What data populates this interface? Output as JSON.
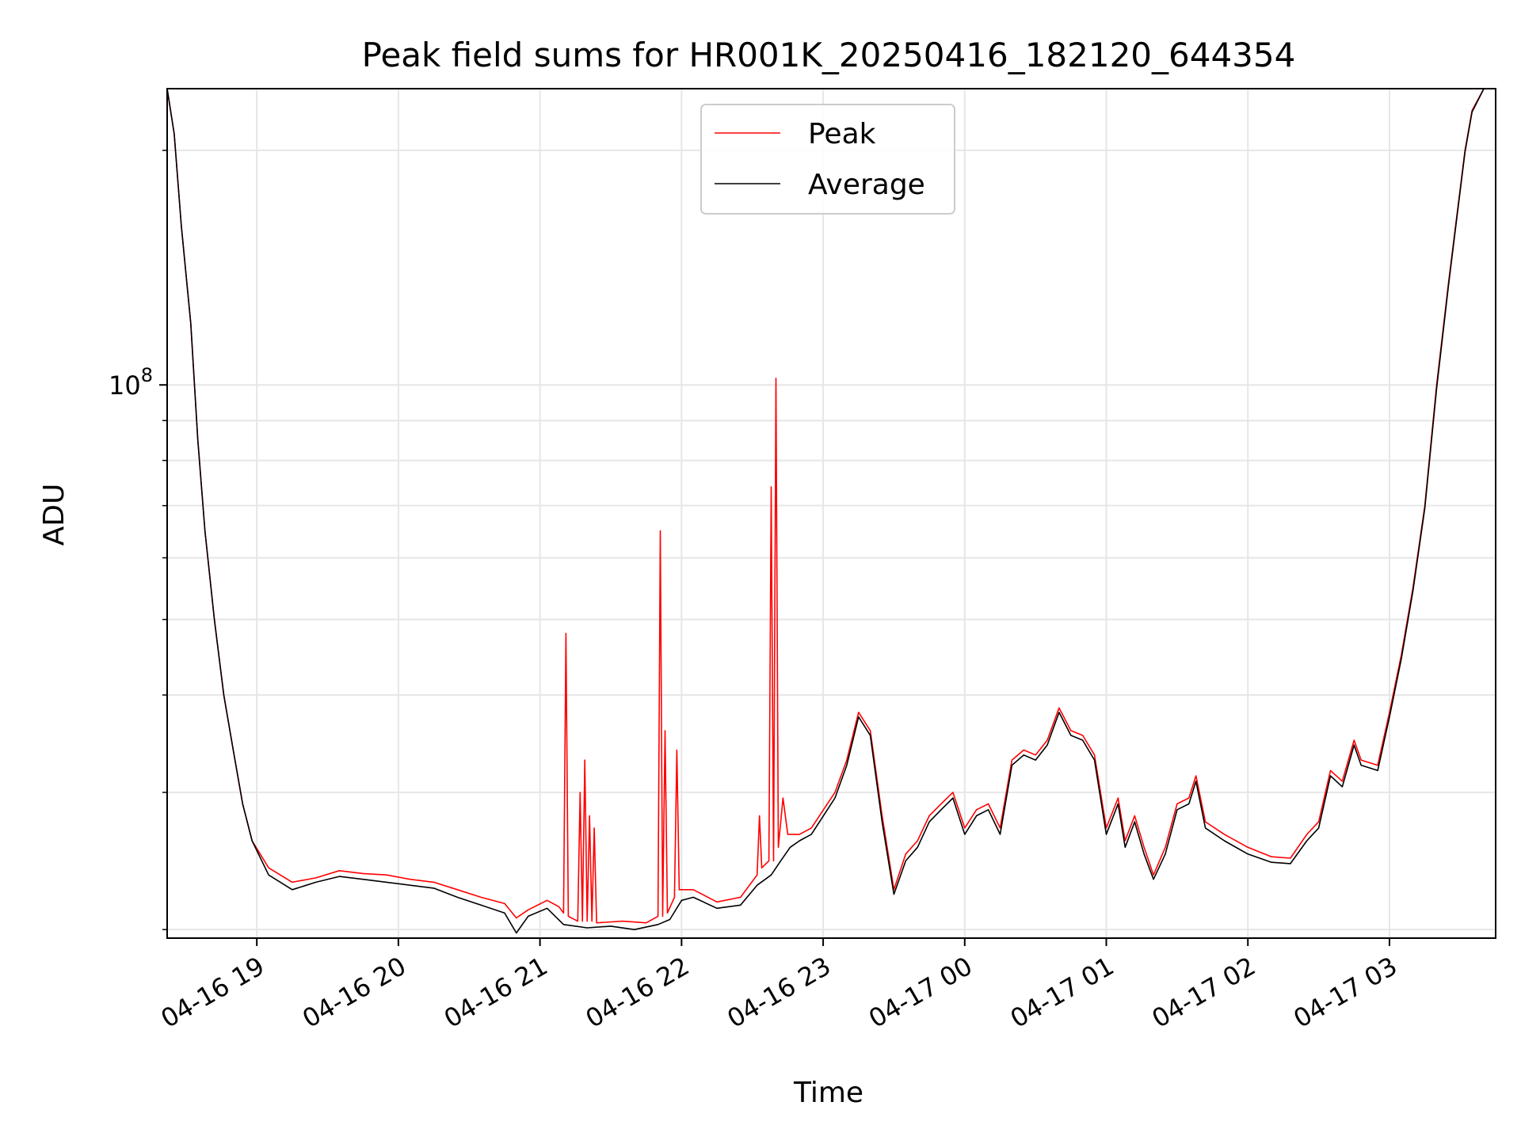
{
  "chart_data": {
    "type": "line",
    "title": "Peak field sums for HR001K_20250416_182120_644354",
    "xlabel": "Time",
    "ylabel": "ADU",
    "y_scale": "log",
    "ylim": [
      19500000,
      240000000
    ],
    "xlim": [
      "04-16 18:22",
      "04-17 03:45"
    ],
    "grid": true,
    "legend_position": "top-center",
    "x_ticks": [
      "04-16 19",
      "04-16 20",
      "04-16 21",
      "04-16 22",
      "04-16 23",
      "04-17 00",
      "04-17 01",
      "04-17 02",
      "04-17 03"
    ],
    "y_tick_label": {
      "base": "10",
      "exponent": "8",
      "value": 100000000
    },
    "series": [
      {
        "name": "Peak",
        "color": "#ff0000",
        "points": [
          [
            "04-16 18:22",
            240000000
          ],
          [
            "04-16 18:25",
            210000000
          ],
          [
            "04-16 18:28",
            160000000
          ],
          [
            "04-16 18:32",
            120000000
          ],
          [
            "04-16 18:35",
            85000000
          ],
          [
            "04-16 18:38",
            65000000
          ],
          [
            "04-16 18:42",
            50000000
          ],
          [
            "04-16 18:46",
            40000000
          ],
          [
            "04-16 18:50",
            34000000
          ],
          [
            "04-16 18:54",
            29000000
          ],
          [
            "04-16 18:58",
            26000000
          ],
          [
            "04-16 19:05",
            24000000
          ],
          [
            "04-16 19:15",
            23000000
          ],
          [
            "04-16 19:25",
            23300000
          ],
          [
            "04-16 19:35",
            23800000
          ],
          [
            "04-16 19:45",
            23600000
          ],
          [
            "04-16 19:55",
            23500000
          ],
          [
            "04-16 20:05",
            23200000
          ],
          [
            "04-16 20:15",
            23000000
          ],
          [
            "04-16 20:25",
            22500000
          ],
          [
            "04-16 20:35",
            22000000
          ],
          [
            "04-16 20:45",
            21600000
          ],
          [
            "04-16 20:50",
            20700000
          ],
          [
            "04-16 20:55",
            21200000
          ],
          [
            "04-16 21:03",
            21800000
          ],
          [
            "04-16 21:08",
            21400000
          ],
          [
            "04-16 21:10",
            21000000
          ],
          [
            "04-16 21:11",
            48000000
          ],
          [
            "04-16 21:12",
            20800000
          ],
          [
            "04-16 21:16",
            20500000
          ],
          [
            "04-16 21:17",
            30000000
          ],
          [
            "04-16 21:18",
            20500000
          ],
          [
            "04-16 21:19",
            33000000
          ],
          [
            "04-16 21:20",
            20500000
          ],
          [
            "04-16 21:21",
            28000000
          ],
          [
            "04-16 21:22",
            20500000
          ],
          [
            "04-16 21:23",
            27000000
          ],
          [
            "04-16 21:24",
            20400000
          ],
          [
            "04-16 21:35",
            20500000
          ],
          [
            "04-16 21:45",
            20400000
          ],
          [
            "04-16 21:50",
            20800000
          ],
          [
            "04-16 21:51",
            65000000
          ],
          [
            "04-16 21:52",
            20800000
          ],
          [
            "04-16 21:53",
            36000000
          ],
          [
            "04-16 21:54",
            21000000
          ],
          [
            "04-16 21:57",
            22000000
          ],
          [
            "04-16 21:58",
            34000000
          ],
          [
            "04-16 21:59",
            22500000
          ],
          [
            "04-16 22:05",
            22500000
          ],
          [
            "04-16 22:15",
            21700000
          ],
          [
            "04-16 22:25",
            22000000
          ],
          [
            "04-16 22:32",
            23500000
          ],
          [
            "04-16 22:33",
            28000000
          ],
          [
            "04-16 22:34",
            24000000
          ],
          [
            "04-16 22:37",
            24500000
          ],
          [
            "04-16 22:38",
            74000000
          ],
          [
            "04-16 22:39",
            24500000
          ],
          [
            "04-16 22:40",
            102000000
          ],
          [
            "04-16 22:41",
            25500000
          ],
          [
            "04-16 22:43",
            29500000
          ],
          [
            "04-16 22:45",
            26500000
          ],
          [
            "04-16 22:50",
            26500000
          ],
          [
            "04-16 22:55",
            27000000
          ],
          [
            "04-16 23:05",
            30000000
          ],
          [
            "04-16 23:10",
            33000000
          ],
          [
            "04-16 23:15",
            38000000
          ],
          [
            "04-16 23:20",
            36000000
          ],
          [
            "04-16 23:25",
            28000000
          ],
          [
            "04-16 23:30",
            22500000
          ],
          [
            "04-16 23:35",
            25000000
          ],
          [
            "04-16 23:40",
            26000000
          ],
          [
            "04-16 23:45",
            28000000
          ],
          [
            "04-16 23:50",
            29000000
          ],
          [
            "04-16 23:55",
            30000000
          ],
          [
            "04-17 00:00",
            27000000
          ],
          [
            "04-17 00:05",
            28500000
          ],
          [
            "04-17 00:10",
            29000000
          ],
          [
            "04-17 00:15",
            27000000
          ],
          [
            "04-17 00:20",
            33000000
          ],
          [
            "04-17 00:25",
            34000000
          ],
          [
            "04-17 00:30",
            33500000
          ],
          [
            "04-17 00:35",
            35000000
          ],
          [
            "04-17 00:40",
            38500000
          ],
          [
            "04-17 00:45",
            36000000
          ],
          [
            "04-17 00:50",
            35500000
          ],
          [
            "04-17 00:55",
            33500000
          ],
          [
            "04-17 01:00",
            27000000
          ],
          [
            "04-17 01:05",
            29500000
          ],
          [
            "04-17 01:08",
            26000000
          ],
          [
            "04-17 01:12",
            28000000
          ],
          [
            "04-17 01:16",
            25500000
          ],
          [
            "04-17 01:20",
            23500000
          ],
          [
            "04-17 01:25",
            25500000
          ],
          [
            "04-17 01:30",
            29000000
          ],
          [
            "04-17 01:35",
            29500000
          ],
          [
            "04-17 01:38",
            31500000
          ],
          [
            "04-17 01:42",
            27500000
          ],
          [
            "04-17 01:50",
            26500000
          ],
          [
            "04-17 02:00",
            25500000
          ],
          [
            "04-17 02:10",
            24800000
          ],
          [
            "04-17 02:18",
            24700000
          ],
          [
            "04-17 02:25",
            26500000
          ],
          [
            "04-17 02:30",
            27500000
          ],
          [
            "04-17 02:35",
            32000000
          ],
          [
            "04-17 02:40",
            31000000
          ],
          [
            "04-17 02:45",
            35000000
          ],
          [
            "04-17 02:48",
            33000000
          ],
          [
            "04-17 02:55",
            32500000
          ],
          [
            "04-17 03:00",
            38000000
          ],
          [
            "04-17 03:05",
            45000000
          ],
          [
            "04-17 03:10",
            55000000
          ],
          [
            "04-17 03:15",
            70000000
          ],
          [
            "04-17 03:20",
            100000000
          ],
          [
            "04-17 03:25",
            135000000
          ],
          [
            "04-17 03:28",
            160000000
          ],
          [
            "04-17 03:32",
            200000000
          ],
          [
            "04-17 03:35",
            225000000
          ],
          [
            "04-17 03:40",
            240000000
          ]
        ]
      },
      {
        "name": "Average",
        "color": "#000000",
        "points": [
          [
            "04-16 18:22",
            240000000
          ],
          [
            "04-16 18:25",
            210000000
          ],
          [
            "04-16 18:28",
            160000000
          ],
          [
            "04-16 18:32",
            120000000
          ],
          [
            "04-16 18:35",
            85000000
          ],
          [
            "04-16 18:38",
            65000000
          ],
          [
            "04-16 18:42",
            50000000
          ],
          [
            "04-16 18:46",
            40000000
          ],
          [
            "04-16 18:50",
            34000000
          ],
          [
            "04-16 18:54",
            29000000
          ],
          [
            "04-16 18:58",
            26000000
          ],
          [
            "04-16 19:05",
            23500000
          ],
          [
            "04-16 19:15",
            22500000
          ],
          [
            "04-16 19:25",
            23000000
          ],
          [
            "04-16 19:35",
            23400000
          ],
          [
            "04-16 19:45",
            23200000
          ],
          [
            "04-16 19:55",
            23000000
          ],
          [
            "04-16 20:05",
            22800000
          ],
          [
            "04-16 20:15",
            22600000
          ],
          [
            "04-16 20:25",
            22000000
          ],
          [
            "04-16 20:35",
            21500000
          ],
          [
            "04-16 20:45",
            21000000
          ],
          [
            "04-16 20:50",
            19800000
          ],
          [
            "04-16 20:55",
            20800000
          ],
          [
            "04-16 21:03",
            21300000
          ],
          [
            "04-16 21:10",
            20300000
          ],
          [
            "04-16 21:20",
            20100000
          ],
          [
            "04-16 21:30",
            20200000
          ],
          [
            "04-16 21:40",
            20000000
          ],
          [
            "04-16 21:50",
            20300000
          ],
          [
            "04-16 21:55",
            20600000
          ],
          [
            "04-16 22:00",
            21800000
          ],
          [
            "04-16 22:05",
            22000000
          ],
          [
            "04-16 22:15",
            21300000
          ],
          [
            "04-16 22:25",
            21500000
          ],
          [
            "04-16 22:32",
            22800000
          ],
          [
            "04-16 22:38",
            23500000
          ],
          [
            "04-16 22:42",
            24500000
          ],
          [
            "04-16 22:46",
            25500000
          ],
          [
            "04-16 22:50",
            26000000
          ],
          [
            "04-16 22:55",
            26500000
          ],
          [
            "04-16 23:05",
            29500000
          ],
          [
            "04-16 23:10",
            32500000
          ],
          [
            "04-16 23:15",
            37500000
          ],
          [
            "04-16 23:20",
            35500000
          ],
          [
            "04-16 23:25",
            27500000
          ],
          [
            "04-16 23:30",
            22200000
          ],
          [
            "04-16 23:35",
            24500000
          ],
          [
            "04-16 23:40",
            25500000
          ],
          [
            "04-16 23:45",
            27500000
          ],
          [
            "04-16 23:50",
            28500000
          ],
          [
            "04-16 23:55",
            29500000
          ],
          [
            "04-17 00:00",
            26500000
          ],
          [
            "04-17 00:05",
            28000000
          ],
          [
            "04-17 00:10",
            28500000
          ],
          [
            "04-17 00:15",
            26500000
          ],
          [
            "04-17 00:20",
            32500000
          ],
          [
            "04-17 00:25",
            33500000
          ],
          [
            "04-17 00:30",
            33000000
          ],
          [
            "04-17 00:35",
            34500000
          ],
          [
            "04-17 00:40",
            38000000
          ],
          [
            "04-17 00:45",
            35500000
          ],
          [
            "04-17 00:50",
            35000000
          ],
          [
            "04-17 00:55",
            33000000
          ],
          [
            "04-17 01:00",
            26500000
          ],
          [
            "04-17 01:05",
            29000000
          ],
          [
            "04-17 01:08",
            25500000
          ],
          [
            "04-17 01:12",
            27500000
          ],
          [
            "04-17 01:16",
            25000000
          ],
          [
            "04-17 01:20",
            23200000
          ],
          [
            "04-17 01:25",
            25000000
          ],
          [
            "04-17 01:30",
            28500000
          ],
          [
            "04-17 01:35",
            29000000
          ],
          [
            "04-17 01:38",
            31000000
          ],
          [
            "04-17 01:42",
            27000000
          ],
          [
            "04-17 01:50",
            26000000
          ],
          [
            "04-17 02:00",
            25000000
          ],
          [
            "04-17 02:10",
            24400000
          ],
          [
            "04-17 02:18",
            24300000
          ],
          [
            "04-17 02:25",
            26000000
          ],
          [
            "04-17 02:30",
            27000000
          ],
          [
            "04-17 02:35",
            31500000
          ],
          [
            "04-17 02:40",
            30500000
          ],
          [
            "04-17 02:45",
            34500000
          ],
          [
            "04-17 02:48",
            32500000
          ],
          [
            "04-17 02:55",
            32000000
          ],
          [
            "04-17 03:00",
            37500000
          ],
          [
            "04-17 03:05",
            44500000
          ],
          [
            "04-17 03:10",
            54500000
          ],
          [
            "04-17 03:15",
            69500000
          ],
          [
            "04-17 03:20",
            99000000
          ],
          [
            "04-17 03:25",
            134000000
          ],
          [
            "04-17 03:28",
            159000000
          ],
          [
            "04-17 03:32",
            199000000
          ],
          [
            "04-17 03:35",
            224000000
          ],
          [
            "04-17 03:40",
            240000000
          ]
        ]
      }
    ]
  }
}
